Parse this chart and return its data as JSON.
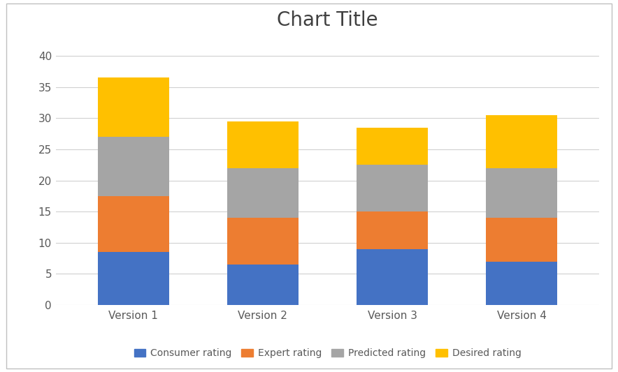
{
  "categories": [
    "Version 1",
    "Version 2",
    "Version 3",
    "Version 4"
  ],
  "series": {
    "Consumer rating": [
      8.5,
      6.5,
      9.0,
      7.0
    ],
    "Expert rating": [
      9.0,
      7.5,
      6.0,
      7.0
    ],
    "Predicted rating": [
      9.5,
      8.0,
      7.5,
      8.0
    ],
    "Desired rating": [
      9.5,
      7.5,
      6.0,
      8.5
    ]
  },
  "colors": {
    "Consumer rating": "#4472C4",
    "Expert rating": "#ED7D31",
    "Predicted rating": "#A5A5A5",
    "Desired rating": "#FFC000"
  },
  "title": "Chart Title",
  "title_fontsize": 20,
  "ylim": [
    0,
    43
  ],
  "yticks": [
    0,
    5,
    10,
    15,
    20,
    25,
    30,
    35,
    40
  ],
  "bar_width": 0.55,
  "background_color": "#FFFFFF",
  "plot_bg_color": "#FFFFFF",
  "grid_color": "#D0D0D0",
  "tick_color": "#595959",
  "legend_fontsize": 10,
  "axis_fontsize": 11,
  "border_color": "#C0C0C0"
}
